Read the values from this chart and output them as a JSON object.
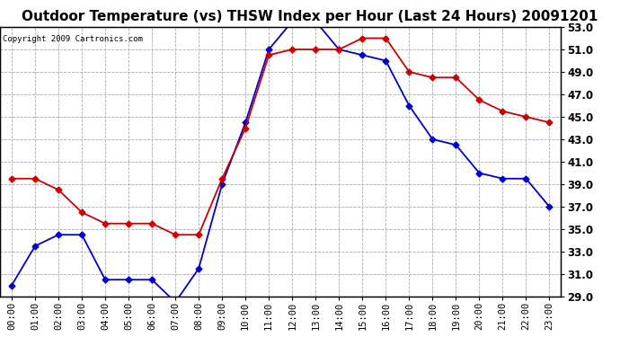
{
  "title": "Outdoor Temperature (vs) THSW Index per Hour (Last 24 Hours) 20091201",
  "copyright": "Copyright 2009 Cartronics.com",
  "hours": [
    "00:00",
    "01:00",
    "02:00",
    "03:00",
    "04:00",
    "05:00",
    "06:00",
    "07:00",
    "08:00",
    "09:00",
    "10:00",
    "11:00",
    "12:00",
    "13:00",
    "14:00",
    "15:00",
    "16:00",
    "17:00",
    "18:00",
    "19:00",
    "20:00",
    "21:00",
    "22:00",
    "23:00"
  ],
  "temp": [
    30.0,
    33.5,
    34.5,
    34.5,
    30.5,
    30.5,
    30.5,
    28.5,
    31.5,
    39.0,
    44.5,
    51.0,
    53.5,
    53.5,
    51.0,
    50.5,
    50.0,
    46.0,
    43.0,
    42.5,
    40.0,
    39.5,
    39.5,
    37.0
  ],
  "thsw": [
    39.5,
    39.5,
    38.5,
    36.5,
    35.5,
    35.5,
    35.5,
    34.5,
    34.5,
    39.5,
    44.0,
    50.5,
    51.0,
    51.0,
    51.0,
    52.0,
    52.0,
    49.0,
    48.5,
    48.5,
    46.5,
    45.5,
    45.0,
    44.5
  ],
  "temp_color": "#0000cc",
  "thsw_color": "#cc0000",
  "ylim": [
    29.0,
    53.0
  ],
  "yticks": [
    29.0,
    31.0,
    33.0,
    35.0,
    37.0,
    39.0,
    41.0,
    43.0,
    45.0,
    47.0,
    49.0,
    51.0,
    53.0
  ],
  "bg_color": "#ffffff",
  "plot_bg": "#ffffff",
  "grid_color": "#aaaaaa",
  "title_fontsize": 11,
  "copyright_fontsize": 6.5,
  "tick_fontsize": 7.5,
  "ytick_fontsize": 8.5
}
